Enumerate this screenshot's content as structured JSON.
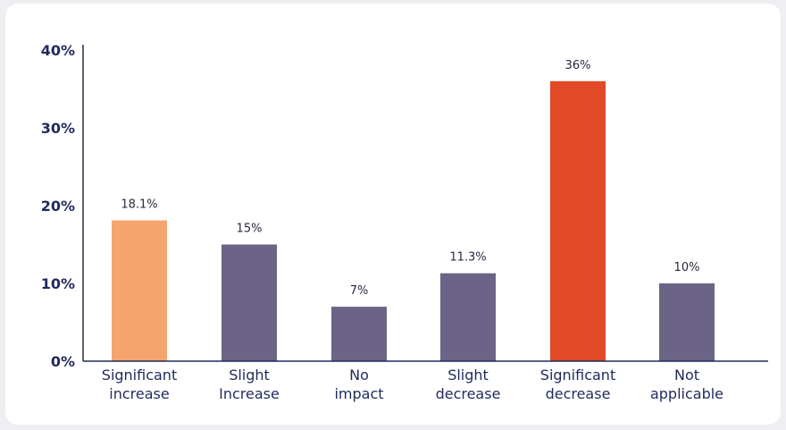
{
  "chart_data": {
    "type": "bar",
    "categories": [
      [
        "Significant",
        "increase"
      ],
      [
        "Slight",
        "Increase"
      ],
      [
        "No",
        "impact"
      ],
      [
        "Slight",
        "decrease"
      ],
      [
        "Significant",
        "decrease"
      ],
      [
        "Not",
        "applicable"
      ]
    ],
    "values": [
      18.1,
      15,
      7,
      11.3,
      36,
      10
    ],
    "data_labels": [
      "18.1%",
      "15%",
      "7%",
      "11.3%",
      "36%",
      "10%"
    ],
    "bar_colors": [
      "#f5a46e",
      "#6c6486",
      "#6c6486",
      "#6c6486",
      "#e14a26",
      "#6c6486"
    ],
    "yticks": [
      {
        "value": 0,
        "label": "0%"
      },
      {
        "value": 10,
        "label": "10%"
      },
      {
        "value": 20,
        "label": "20%"
      },
      {
        "value": 30,
        "label": "30%"
      },
      {
        "value": 40,
        "label": "40%"
      }
    ],
    "ylim": [
      0,
      40
    ],
    "title": "",
    "xlabel": "",
    "ylabel": "",
    "grid": false,
    "legend": "none"
  },
  "colors": {
    "axis": "#1f2a5c",
    "card_background": "#ffffff",
    "page_background": "#eeeef3"
  }
}
